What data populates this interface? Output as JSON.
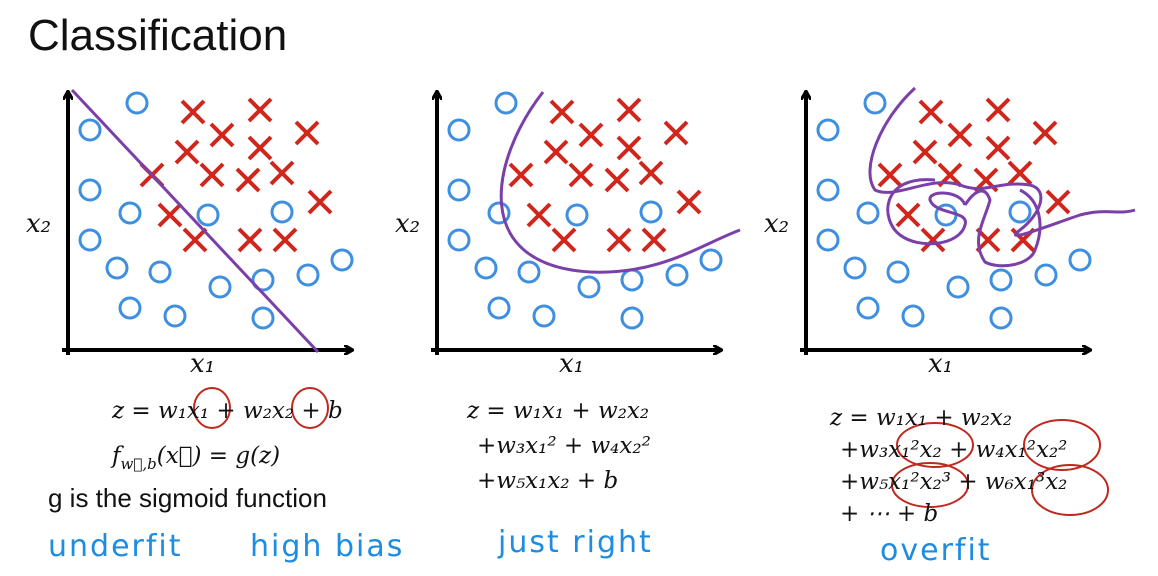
{
  "header": {
    "title": "Classification"
  },
  "panels": [
    {
      "x_label": "x₁",
      "y_label": "x₂",
      "equations": [
        "z = w₁x₁ + w₂x₂ + b"
      ],
      "f_line": {
        "base": "f",
        "sub": "w⃗,b",
        "rest": "(x⃗) = g(z)"
      },
      "note": "g is the sigmoid function",
      "tags": [
        "underfit",
        "high bias"
      ]
    },
    {
      "x_label": "x₁",
      "y_label": "x₂",
      "equations": [
        "z = w₁x₁ + w₂x₂",
        "+w₃x₁² + w₄x₂²",
        "+w₅x₁x₂ + b"
      ],
      "tags": [
        "just right"
      ]
    },
    {
      "x_label": "x₁",
      "y_label": "x₂",
      "equations": [
        "z = w₁x₁ + w₂x₂",
        "+w₃x₁²x₂ + w₄x₁²x₂²",
        "+w₅x₁²x₂³ + w₆x₁³x₂",
        "+ ⋯ + b"
      ],
      "tags": [
        "overfit"
      ]
    }
  ]
}
